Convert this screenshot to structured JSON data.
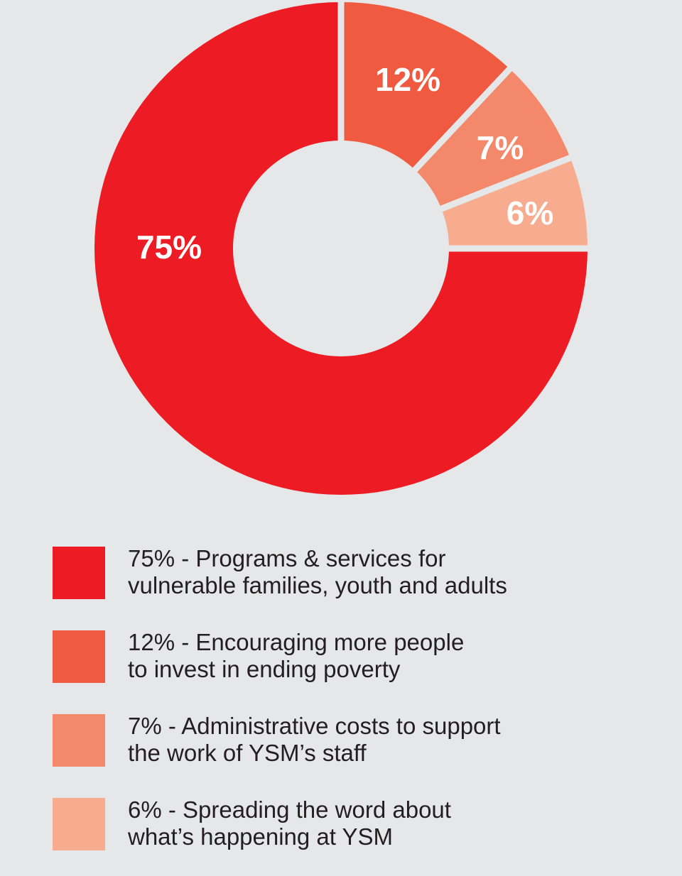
{
  "chart_data": {
    "type": "pie",
    "style": "donut",
    "slices": [
      {
        "label": "75%",
        "value": 75,
        "color": "#ed1c24"
      },
      {
        "label": "12%",
        "value": 12,
        "color": "#f05a40"
      },
      {
        "label": "7%",
        "value": 7,
        "color": "#f3886a"
      },
      {
        "label": "6%",
        "value": 6,
        "color": "#f8ac8f"
      }
    ],
    "slice_order": "counterclockwise from 12 o'clock for the 75% slice, remaining slices clockwise from 12 o'clock",
    "legend_placement": "bottom",
    "legend": [
      {
        "text": "75% - Programs & services for\nvulnerable families, youth and adults",
        "color": "#ed1c24"
      },
      {
        "text": "12% - Encouraging more people\nto invest in ending poverty",
        "color": "#f05a40"
      },
      {
        "text": "7% - Administrative costs to support\nthe work of YSM’s staff",
        "color": "#f3886a"
      },
      {
        "text": "6% - Spreading the word about\nwhat’s happening at YSM",
        "color": "#f8ac8f"
      }
    ]
  },
  "colors": {
    "background": "#e6e7e8",
    "separator": "#e6e7e8",
    "label_text": "#ffffff",
    "legend_text": "#231f20"
  }
}
